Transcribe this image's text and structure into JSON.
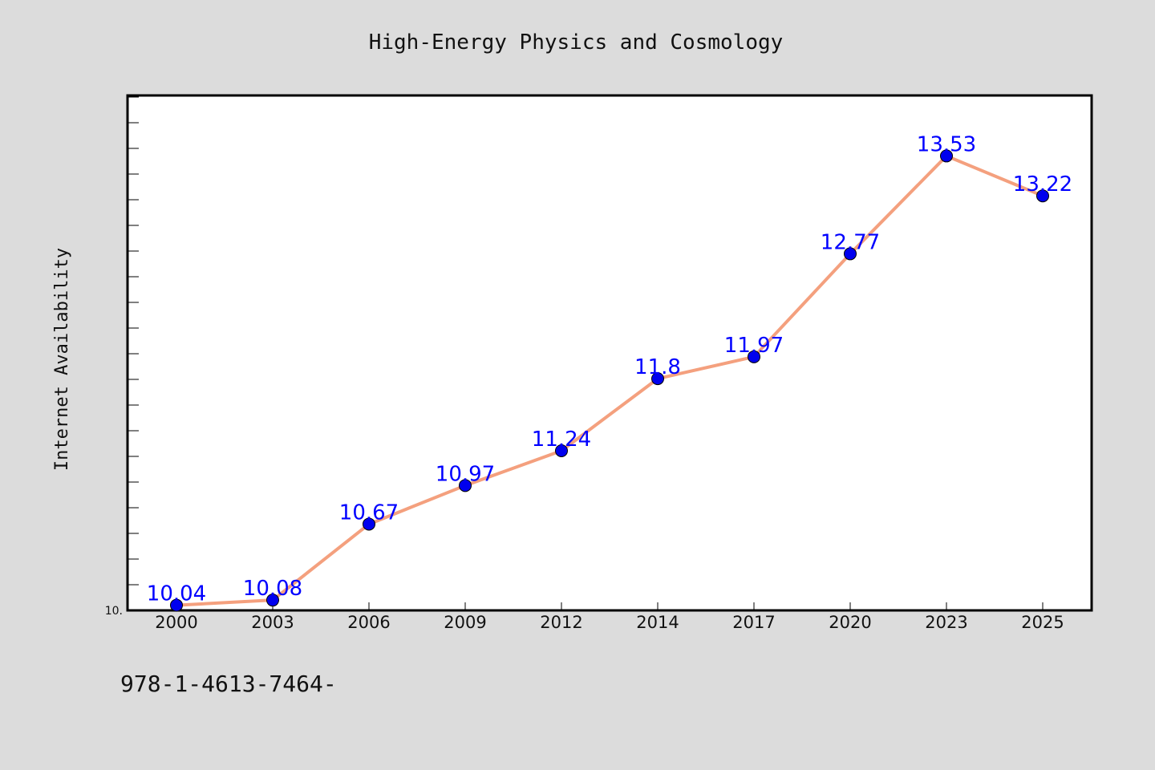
{
  "chart_data": {
    "type": "line",
    "title": "High-Energy Physics and Cosmology",
    "xlabel": "",
    "ylabel": "Internet Availability",
    "categories": [
      "2000",
      "2003",
      "2006",
      "2009",
      "2012",
      "2014",
      "2017",
      "2020",
      "2023",
      "2025"
    ],
    "series": [
      {
        "values": [
          10.04,
          10.08,
          10.67,
          10.97,
          11.24,
          11.8,
          11.97,
          12.77,
          13.53,
          13.22
        ],
        "labels": [
          "10.04",
          "10.08",
          "10.67",
          "10.97",
          "11.24",
          "11.8",
          "11.97",
          "12.77",
          "13.53",
          "13.22"
        ]
      }
    ],
    "ylim": [
      10.0,
      14.0
    ],
    "ytick_label": "10.",
    "grid": false,
    "line_color": "#f4a07e",
    "marker_color": "#0000ee",
    "label_color": "#0000ff",
    "plot_background": "#ffffff",
    "figure_background": "#dcdcdc"
  },
  "footer_text": "978-1-4613-7464-"
}
